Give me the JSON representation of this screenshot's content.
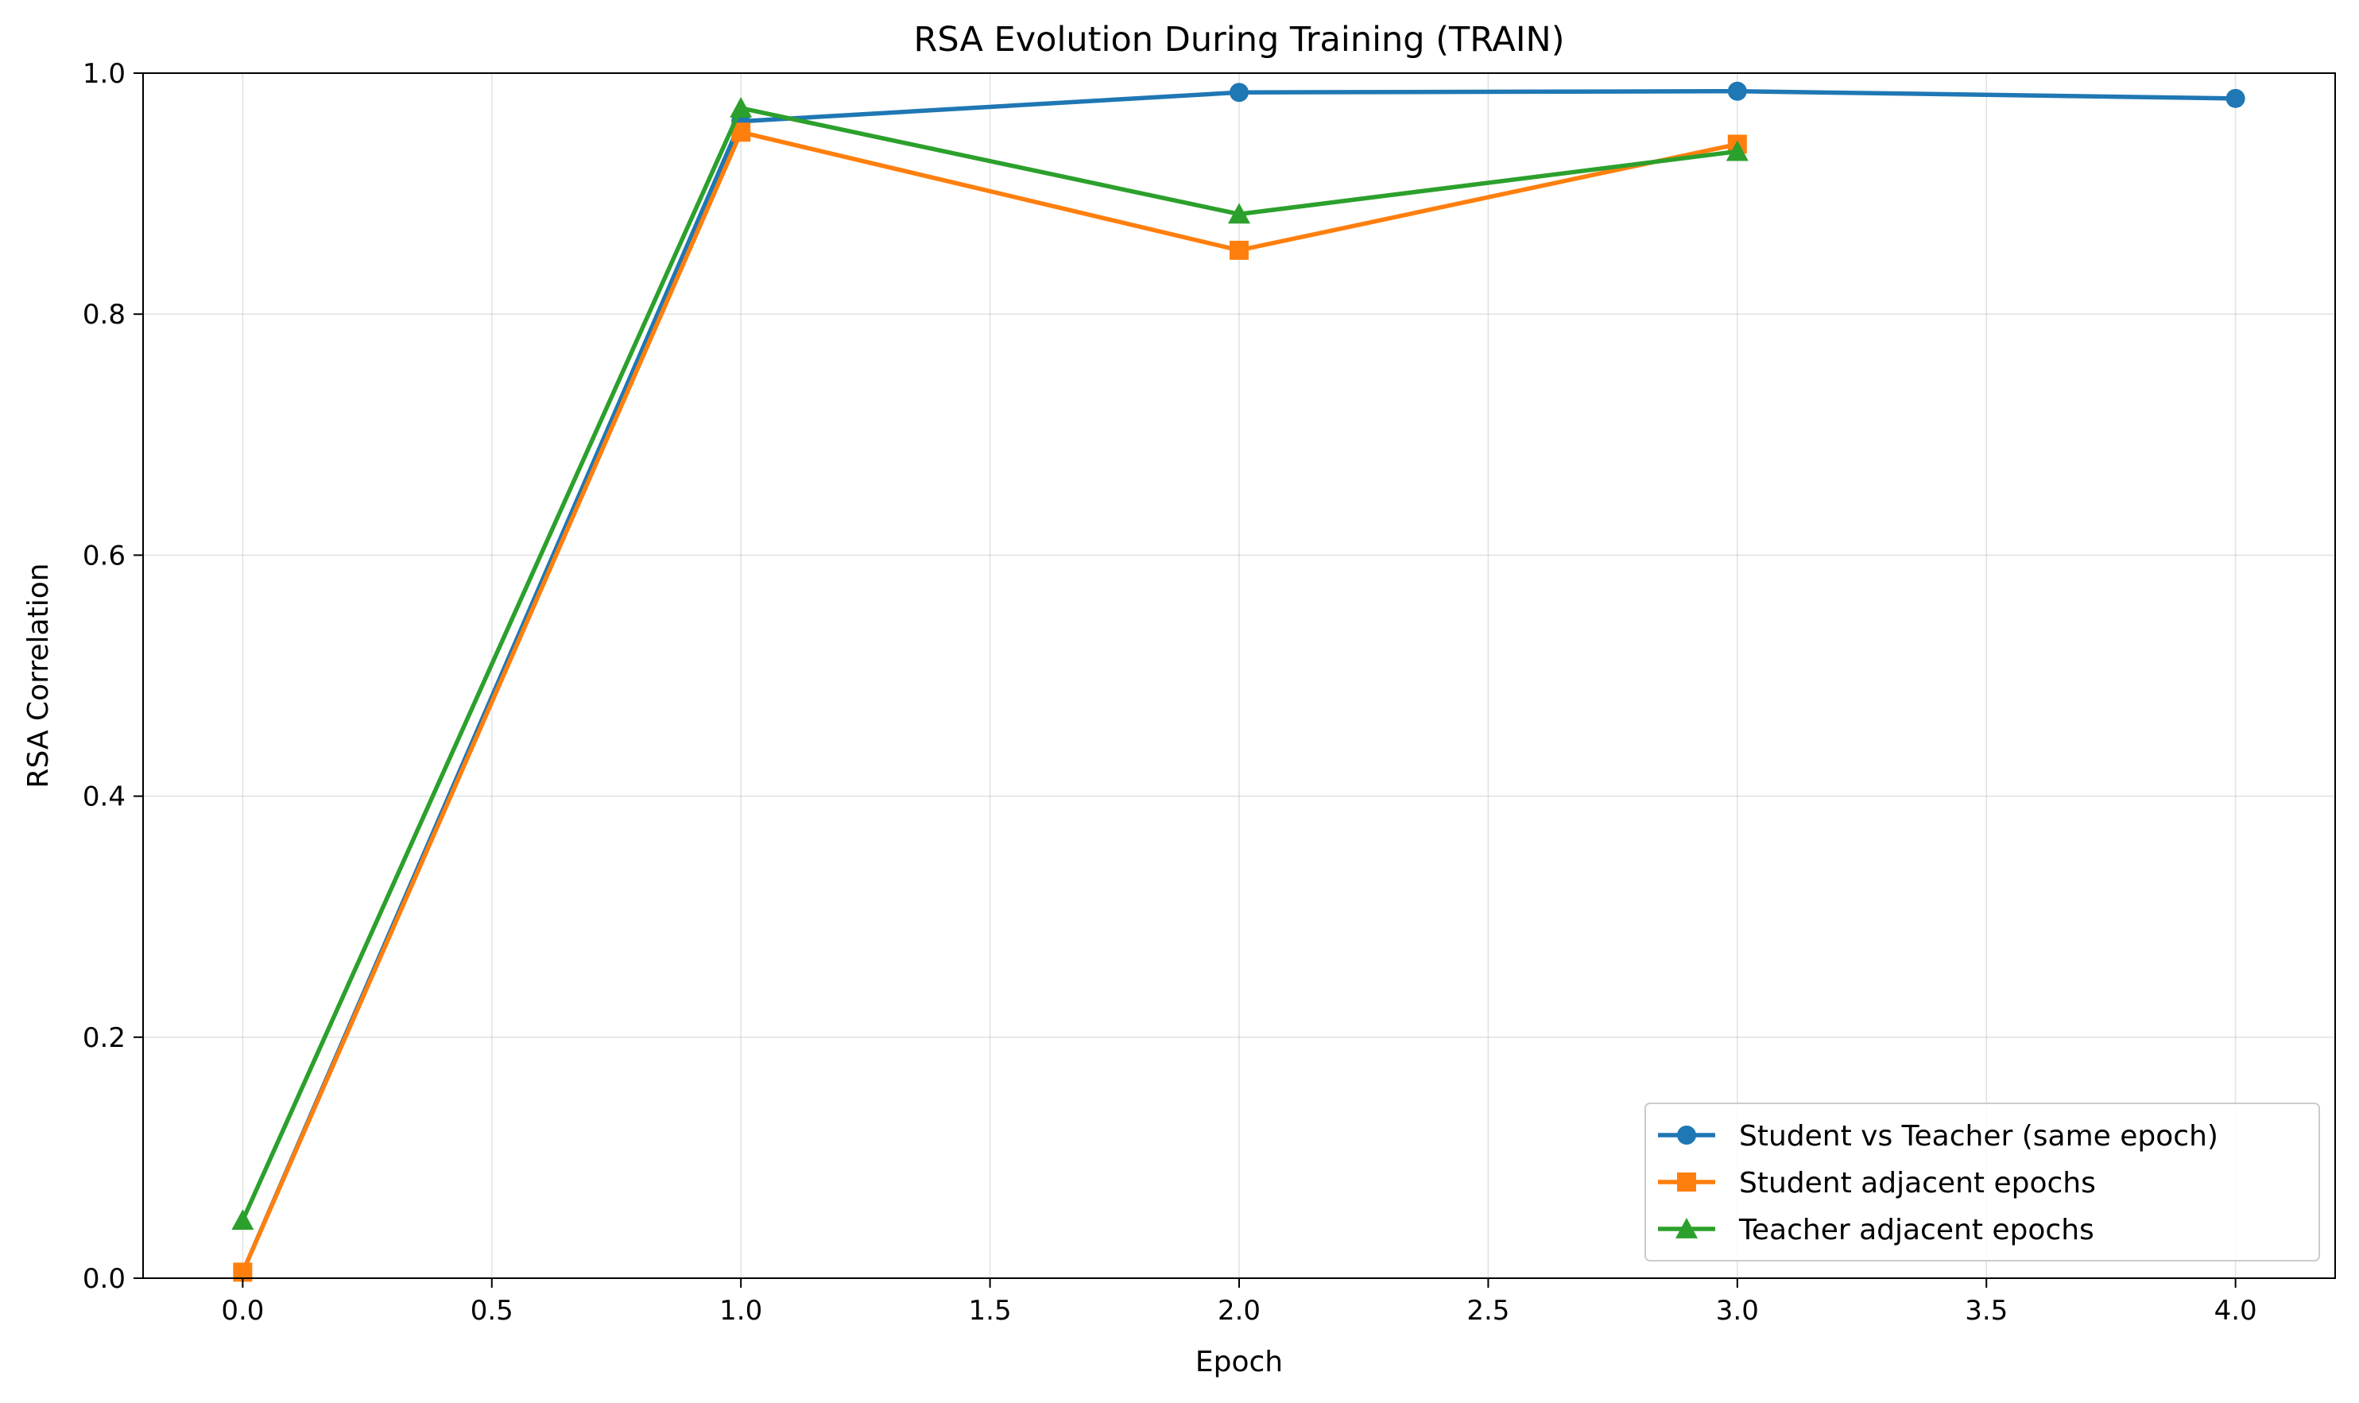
{
  "chart_data": {
    "type": "line",
    "title": "RSA Evolution During Training (TRAIN)",
    "xlabel": "Epoch",
    "ylabel": "RSA Correlation",
    "xlim": [
      -0.2,
      4.2
    ],
    "ylim": [
      0.0,
      1.0
    ],
    "xticks": [
      "0.0",
      "0.5",
      "1.0",
      "1.5",
      "2.0",
      "2.5",
      "3.0",
      "3.5",
      "4.0"
    ],
    "yticks": [
      "0.0",
      "0.2",
      "0.4",
      "0.6",
      "0.8",
      "1.0"
    ],
    "grid": true,
    "legend_position": "bottom-right",
    "series": [
      {
        "name": "Student vs Teacher (same epoch)",
        "color": "#1f77b4",
        "marker": "circle",
        "x": [
          0,
          1,
          2,
          3,
          4
        ],
        "y": [
          0.005,
          0.96,
          0.984,
          0.985,
          0.979
        ]
      },
      {
        "name": "Student adjacent epochs",
        "color": "#ff7f0e",
        "marker": "square",
        "x": [
          0,
          1,
          2,
          3
        ],
        "y": [
          0.005,
          0.951,
          0.853,
          0.941
        ]
      },
      {
        "name": "Teacher adjacent epochs",
        "color": "#2ca02c",
        "marker": "triangle",
        "x": [
          0,
          1,
          2,
          3
        ],
        "y": [
          0.048,
          0.971,
          0.883,
          0.935
        ]
      }
    ]
  }
}
